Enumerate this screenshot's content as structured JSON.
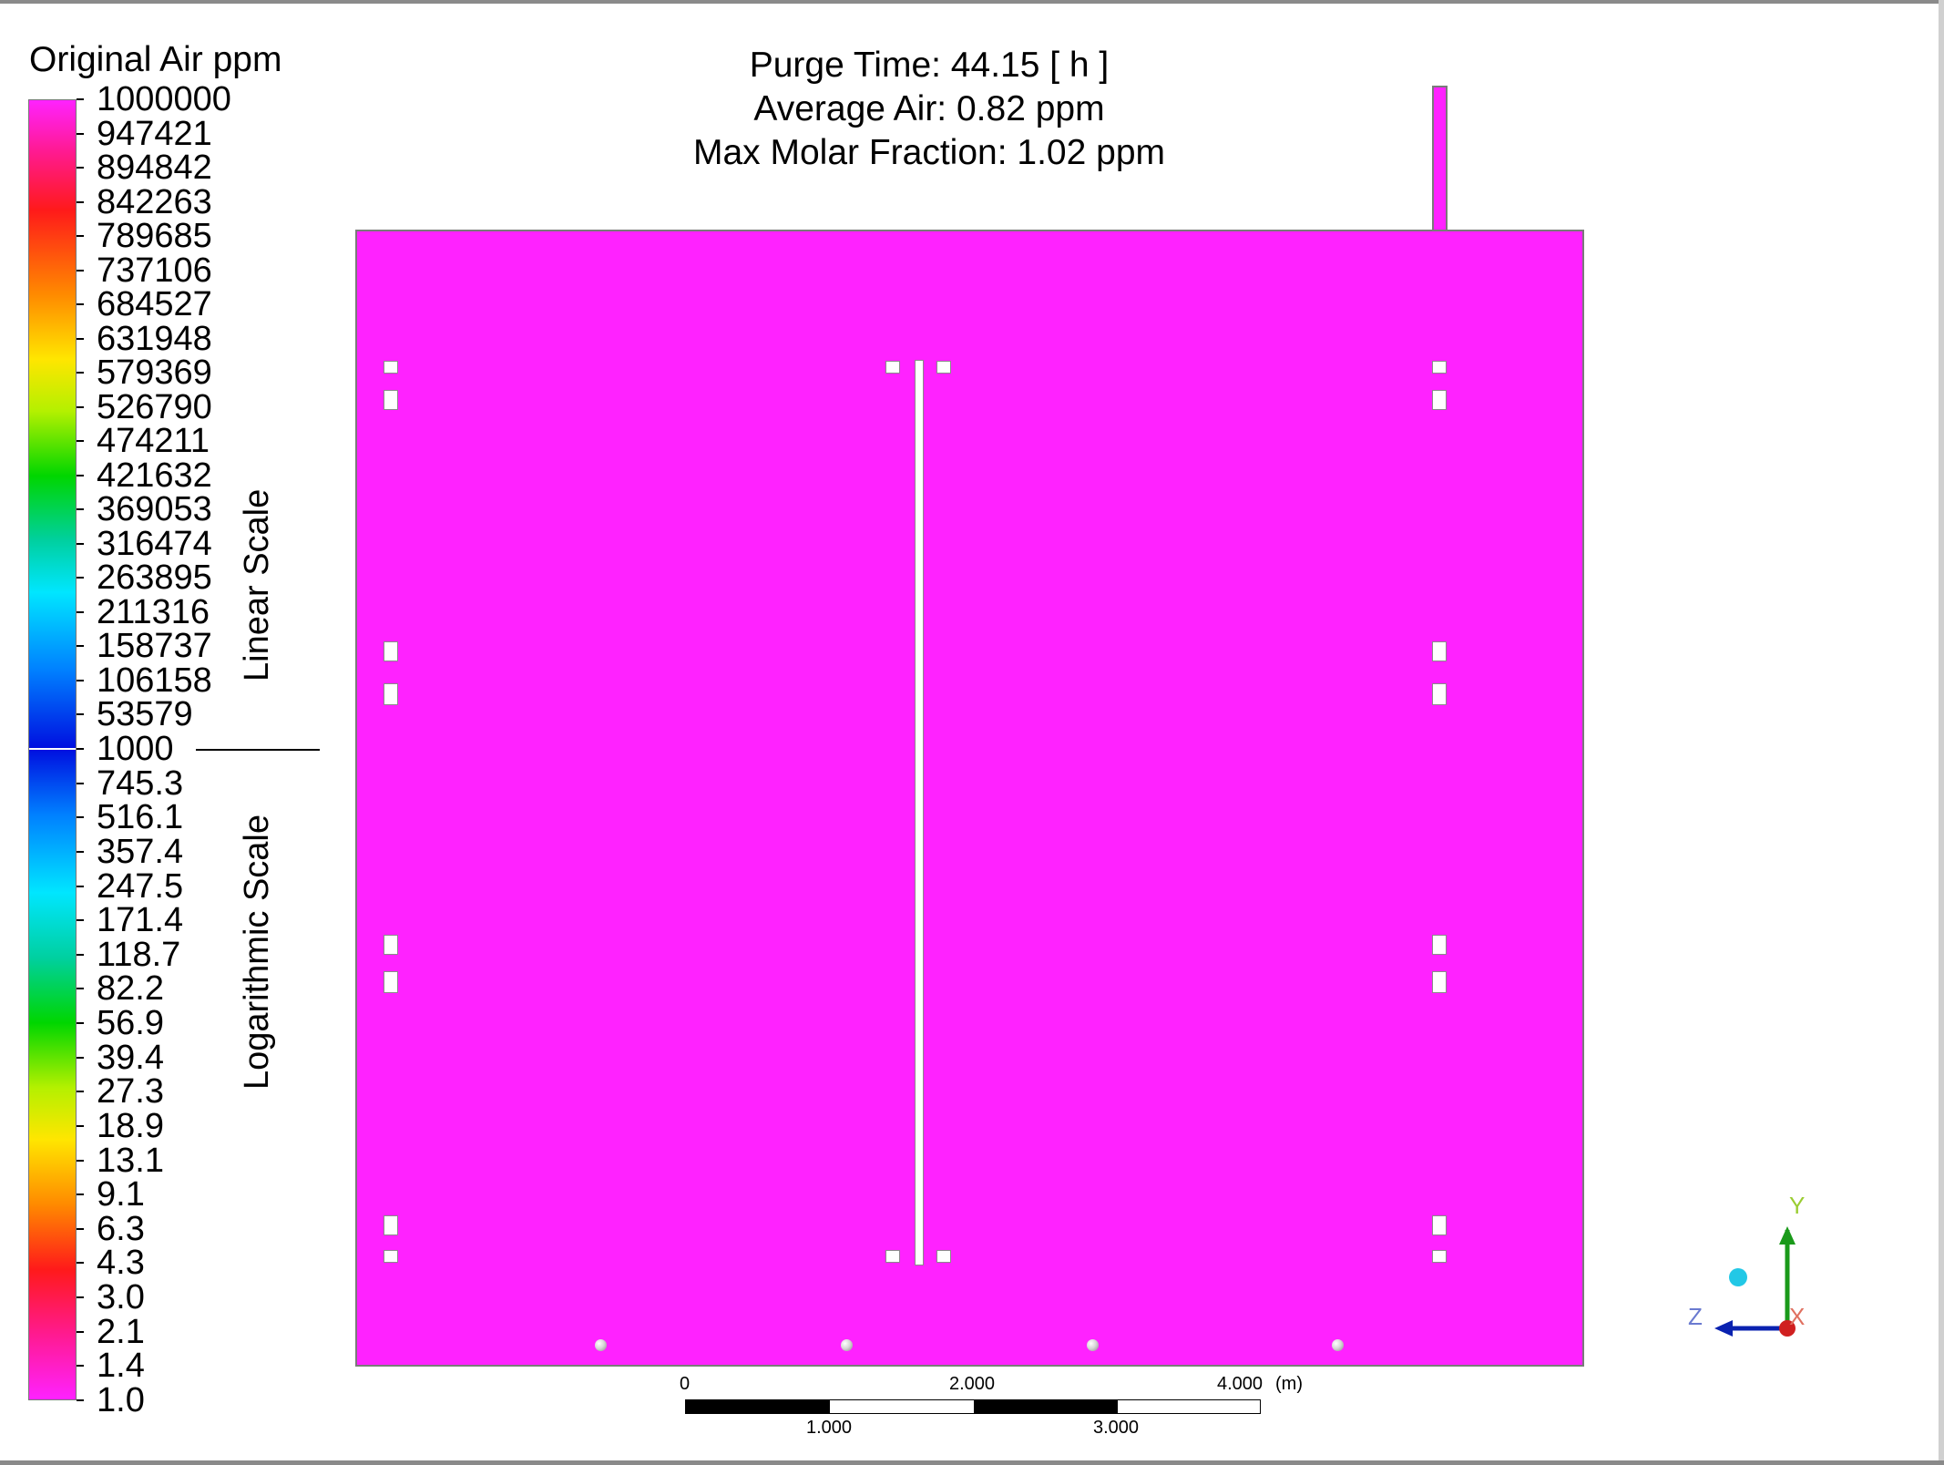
{
  "legend": {
    "title": "Original Air ppm",
    "linear_ticks": [
      "1000000",
      "947421",
      "894842",
      "842263",
      "789685",
      "737106",
      "684527",
      "631948",
      "579369",
      "526790",
      "474211",
      "421632",
      "369053",
      "316474",
      "263895",
      "211316",
      "158737",
      "106158",
      "53579",
      "1000"
    ],
    "log_ticks": [
      "745.3",
      "516.1",
      "357.4",
      "247.5",
      "171.4",
      "118.7",
      "82.2",
      "56.9",
      "39.4",
      "27.3",
      "18.9",
      "13.1",
      "9.1",
      "6.3",
      "4.3",
      "3.0",
      "2.1",
      "1.4",
      "1.0"
    ],
    "linear_scale_label": "Linear Scale",
    "log_scale_label": "Logarithmic Scale"
  },
  "header": {
    "purge_time": "Purge Time: 44.15 [ h ]",
    "average_air": "Average Air: 0.82 ppm",
    "max_molar_fraction": "Max Molar Fraction: 1.02 ppm"
  },
  "scale_bar": {
    "top_labels": [
      "0",
      "2.000",
      "4.000"
    ],
    "unit": "(m)",
    "bottom_labels": [
      "1.000",
      "3.000"
    ]
  },
  "axes": {
    "y": "Y",
    "z": "Z",
    "x": "X"
  },
  "colors": {
    "contour_fill": "#ff22ff",
    "y_axis": "#1a9a1a",
    "z_axis": "#0a22b0",
    "x_axis": "#d02020",
    "background": "#ffffff"
  }
}
